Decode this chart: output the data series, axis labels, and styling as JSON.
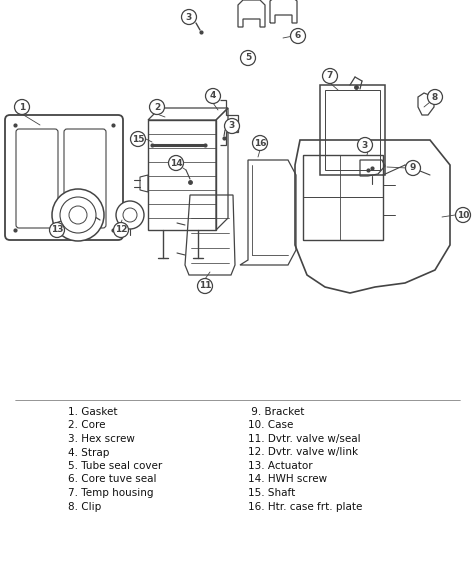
{
  "bg_color": "#ffffff",
  "line_color": "#444444",
  "label_color": "#111111",
  "legend_left": [
    "1. Gasket",
    "2. Core",
    "3. Hex screw",
    "4. Strap",
    "5. Tube seal cover",
    "6. Core tuve seal",
    "7. Temp housing",
    "8. Clip"
  ],
  "legend_right": [
    " 9. Bracket",
    "10. Case",
    "11. Dvtr. valve w/seal",
    "12. Dvtr. valve w/link",
    "13. Actuator",
    "14. HWH screw",
    "15. Shaft",
    "16. Htr. case frt. plate"
  ],
  "font_size_legend": 7.5,
  "diagram_scale": 1.0
}
